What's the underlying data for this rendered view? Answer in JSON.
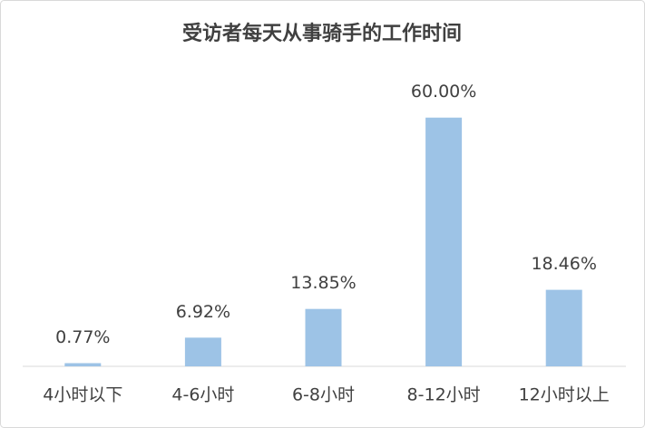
{
  "chart_data": {
    "type": "bar",
    "title": "受访者每天从事骑手的工作时间",
    "categories": [
      "4小时以下",
      "4-6小时",
      "6-8小时",
      "8-12小时",
      "12小时以上"
    ],
    "values": [
      0.77,
      6.92,
      13.85,
      60.0,
      18.46
    ],
    "value_labels": [
      "0.77%",
      "6.92%",
      "13.85%",
      "60.00%",
      "18.46%"
    ],
    "color": "#9dc3e6",
    "ylim": [
      0,
      70
    ],
    "grid": false
  }
}
